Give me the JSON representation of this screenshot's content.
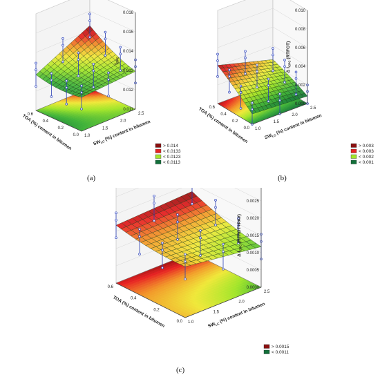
{
  "chart_data": [
    {
      "id": "a",
      "type": "surface3d",
      "caption": "(a)",
      "zlabel": "Iₘₚₘ",
      "zlabel_parts": {
        "main": "I",
        "sub": "CPC"
      },
      "xlabel": "TOA (%) content in bitumen",
      "ylabel": "SWₗₑ (%) content in bitumen",
      "ylabel_parts": {
        "main": "SW",
        "sub": "LC",
        "rest": " (%) content in bitumen"
      },
      "x_ticks": [
        "0.0",
        "0.2",
        "0.4",
        "0.6"
      ],
      "y_ticks": [
        "1.0",
        "1.5",
        "2.0",
        "2.5"
      ],
      "z_ticks": [
        "0.011",
        "0.012",
        "0.013",
        "0.014",
        "0.015",
        "0.016"
      ],
      "xlim": [
        0,
        0.6
      ],
      "ylim": [
        1.0,
        2.5
      ],
      "zlim": [
        0.011,
        0.016
      ],
      "surface": {
        "z00": 0.0126,
        "z10": 0.0127,
        "z01": 0.0128,
        "z11": 0.0141,
        "curv": 0.0006
      },
      "legend": [
        {
          "label": "> 0.014",
          "color": "#8b0f0f"
        },
        {
          "label": "< 0.0133",
          "color": "#e82323"
        },
        {
          "label": "< 0.0123",
          "color": "#a4e62b"
        },
        {
          "label": "< 0.0113",
          "color": "#12703a"
        }
      ],
      "contour_levels": [
        0.0113,
        0.0123,
        0.0133,
        0.014
      ]
    },
    {
      "id": "b",
      "type": "surface3d",
      "caption": "(b)",
      "zlabel_parts": {
        "main": "Δ I",
        "sub": "CPC",
        "rest": " (RTFOT)"
      },
      "xlabel": "TOA (%) content in bitumen",
      "ylabel_parts": {
        "main": "SW",
        "sub": "LC",
        "rest": " (%) content in bitumen"
      },
      "x_ticks": [
        "0.0",
        "0.2",
        "0.4",
        "0.6"
      ],
      "y_ticks": [
        "1.0",
        "1.5",
        "2.0",
        "2.5"
      ],
      "z_ticks": [
        "0.000",
        "0.002",
        "0.004",
        "0.006",
        "0.008",
        "0.010"
      ],
      "xlim": [
        0,
        0.6
      ],
      "ylim": [
        1.0,
        2.5
      ],
      "zlim": [
        0,
        0.01
      ],
      "surface": {
        "z00": 0.0012,
        "z10": 0.0042,
        "z01": 0.0009,
        "z11": 0.0026,
        "curv": -0.0004
      },
      "legend": [
        {
          "label": "> 0.003",
          "color": "#8b0f0f"
        },
        {
          "label": "< 0.003",
          "color": "#e82323"
        },
        {
          "label": "< 0.002",
          "color": "#a4e62b"
        },
        {
          "label": "< 0.001",
          "color": "#12703a"
        }
      ],
      "contour_levels": [
        0.001,
        0.002,
        0.003
      ]
    },
    {
      "id": "c",
      "type": "surface3d",
      "caption": "(c)",
      "zlabel_parts": {
        "main": "Δ I",
        "sub": "CPC",
        "rest": " (RTFOT+PAV)"
      },
      "xlabel": "TOA (%) content in bitumen",
      "ylabel_parts": {
        "main": "SW",
        "sub": "LC",
        "rest": " (%) content in bitumen"
      },
      "x_ticks": [
        "0.0",
        "0.2",
        "0.4",
        "0.6"
      ],
      "y_ticks": [
        "1.0",
        "1.5",
        "2.0",
        "2.5"
      ],
      "z_ticks": [
        "0.0000",
        "0.0005",
        "0.0010",
        "0.0015",
        "0.0020",
        "0.0025",
        "0.0030"
      ],
      "xlim": [
        0,
        0.6
      ],
      "ylim": [
        1.0,
        2.5
      ],
      "zlim": [
        0,
        0.003
      ],
      "surface": {
        "z00": 0.0014,
        "z10": 0.0016,
        "z01": 0.0011,
        "z11": 0.0017,
        "curv": 0.0003
      },
      "legend": [
        {
          "label": "> 0.0015",
          "color": "#8b0f0f"
        },
        {
          "label": "< 0.0011",
          "color": "#12703a"
        }
      ],
      "contour_levels": [
        0.0011,
        0.0015
      ]
    }
  ]
}
